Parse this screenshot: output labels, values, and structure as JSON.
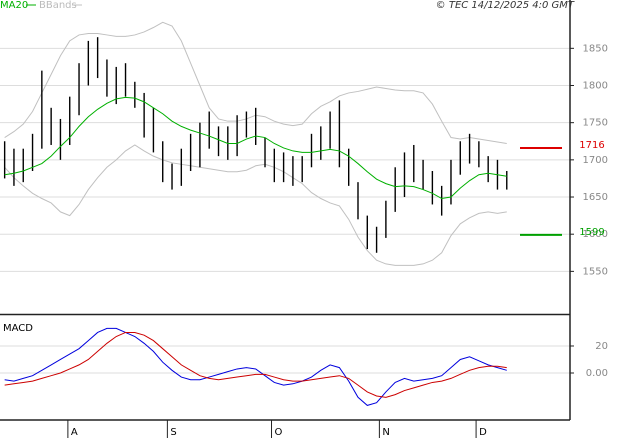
{
  "chart_data": [
    {
      "type": "ohlc",
      "source": "© TEC 14/12/2025 4:0 GMT",
      "color": "#000000",
      "high": [
        1725,
        1715,
        1715,
        1735,
        1820,
        1770,
        1755,
        1785,
        1830,
        1860,
        1865,
        1835,
        1825,
        1830,
        1805,
        1790,
        1770,
        1725,
        1695,
        1715,
        1735,
        1750,
        1765,
        1745,
        1745,
        1760,
        1765,
        1770,
        1730,
        1715,
        1710,
        1705,
        1705,
        1735,
        1745,
        1765,
        1780,
        1715,
        1670,
        1625,
        1610,
        1645,
        1690,
        1710,
        1720,
        1700,
        1685,
        1665,
        1700,
        1725,
        1735,
        1725,
        1705,
        1700,
        1685
      ],
      "low": [
        1675,
        1665,
        1670,
        1685,
        1715,
        1720,
        1700,
        1720,
        1760,
        1800,
        1810,
        1785,
        1775,
        1785,
        1770,
        1730,
        1710,
        1670,
        1660,
        1665,
        1685,
        1690,
        1715,
        1705,
        1700,
        1705,
        1730,
        1720,
        1690,
        1670,
        1670,
        1665,
        1670,
        1690,
        1700,
        1715,
        1690,
        1665,
        1620,
        1580,
        1575,
        1595,
        1630,
        1650,
        1670,
        1660,
        1640,
        1625,
        1640,
        1680,
        1695,
        1690,
        1670,
        1660,
        1660
      ],
      "series": [
        {
          "name": "MA20",
          "color": "#00b000",
          "values": [
            1680,
            1682,
            1685,
            1690,
            1695,
            1705,
            1718,
            1730,
            1745,
            1758,
            1768,
            1776,
            1782,
            1784,
            1783,
            1778,
            1770,
            1762,
            1752,
            1745,
            1740,
            1736,
            1732,
            1727,
            1722,
            1722,
            1728,
            1732,
            1730,
            1722,
            1716,
            1712,
            1710,
            1710,
            1712,
            1714,
            1712,
            1705,
            1695,
            1684,
            1674,
            1668,
            1664,
            1665,
            1664,
            1660,
            1655,
            1648,
            1650,
            1662,
            1672,
            1680,
            1682,
            1680,
            1678
          ]
        }
      ],
      "bands": {
        "name": "BBands",
        "color": "#c0c0c0",
        "upper": [
          1730,
          1738,
          1748,
          1765,
          1790,
          1815,
          1840,
          1860,
          1868,
          1870,
          1870,
          1868,
          1866,
          1866,
          1868,
          1872,
          1878,
          1885,
          1880,
          1860,
          1830,
          1800,
          1770,
          1755,
          1752,
          1752,
          1755,
          1760,
          1758,
          1752,
          1748,
          1746,
          1748,
          1762,
          1772,
          1778,
          1786,
          1790,
          1792,
          1795,
          1798,
          1796,
          1794,
          1793,
          1793,
          1790,
          1775,
          1752,
          1730,
          1728,
          1730,
          1728,
          1726,
          1724,
          1722
        ],
        "lower": [
          1690,
          1676,
          1665,
          1655,
          1648,
          1642,
          1630,
          1625,
          1640,
          1660,
          1676,
          1690,
          1700,
          1712,
          1720,
          1712,
          1705,
          1700,
          1696,
          1694,
          1692,
          1690,
          1688,
          1686,
          1684,
          1684,
          1686,
          1692,
          1694,
          1690,
          1684,
          1676,
          1668,
          1656,
          1648,
          1642,
          1638,
          1620,
          1596,
          1578,
          1565,
          1560,
          1558,
          1558,
          1558,
          1560,
          1565,
          1575,
          1598,
          1614,
          1622,
          1628,
          1630,
          1628,
          1630
        ]
      },
      "levels": [
        {
          "value": 1716,
          "color": "#dd0000"
        },
        {
          "value": 1599,
          "color": "#00a000"
        }
      ],
      "xlim": [
        -0.5,
        60.8
      ],
      "ylim": [
        1494,
        1915
      ],
      "yticks": [
        1550,
        1600,
        1650,
        1700,
        1750,
        1800,
        1850
      ],
      "grid": true
    },
    {
      "type": "line",
      "title": "MACD",
      "series": [
        {
          "color": "#0000dd",
          "values": [
            -5,
            -6,
            -4,
            -2,
            2,
            6,
            10,
            14,
            18,
            24,
            30,
            33,
            33,
            30,
            27,
            22,
            16,
            8,
            2,
            -3,
            -5,
            -5,
            -3,
            -1,
            1,
            3,
            4,
            3,
            -2,
            -7,
            -9,
            -8,
            -6,
            -3,
            2,
            6,
            4,
            -6,
            -18,
            -24,
            -22,
            -14,
            -7,
            -4,
            -6,
            -5,
            -4,
            -2,
            4,
            10,
            12,
            9,
            6,
            4,
            2
          ]
        },
        {
          "color": "#cc0000",
          "values": [
            -9,
            -8,
            -7,
            -6,
            -4,
            -2,
            0,
            3,
            6,
            10,
            16,
            22,
            27,
            30,
            30,
            28,
            24,
            18,
            12,
            6,
            2,
            -2,
            -4,
            -5,
            -4,
            -3,
            -2,
            -1,
            -1,
            -3,
            -5,
            -6,
            -6,
            -5,
            -4,
            -3,
            -2,
            -4,
            -9,
            -14,
            -17,
            -18,
            -16,
            -13,
            -11,
            -9,
            -7,
            -6,
            -4,
            -1,
            2,
            4,
            5,
            5,
            4
          ]
        }
      ],
      "xlim": [
        -0.5,
        60.8
      ],
      "xticks": [
        {
          "value": 6.8,
          "label": "A"
        },
        {
          "value": 17.5,
          "label": "S"
        },
        {
          "value": 28.7,
          "label": "O"
        },
        {
          "value": 40.3,
          "label": "N"
        },
        {
          "value": 50.7,
          "label": "D"
        }
      ],
      "ylim": [
        -34.8,
        42.2
      ],
      "yticks": [
        {
          "value": 20,
          "label": "20"
        },
        {
          "value": 0,
          "label": "0.00"
        }
      ],
      "grid": true
    }
  ]
}
